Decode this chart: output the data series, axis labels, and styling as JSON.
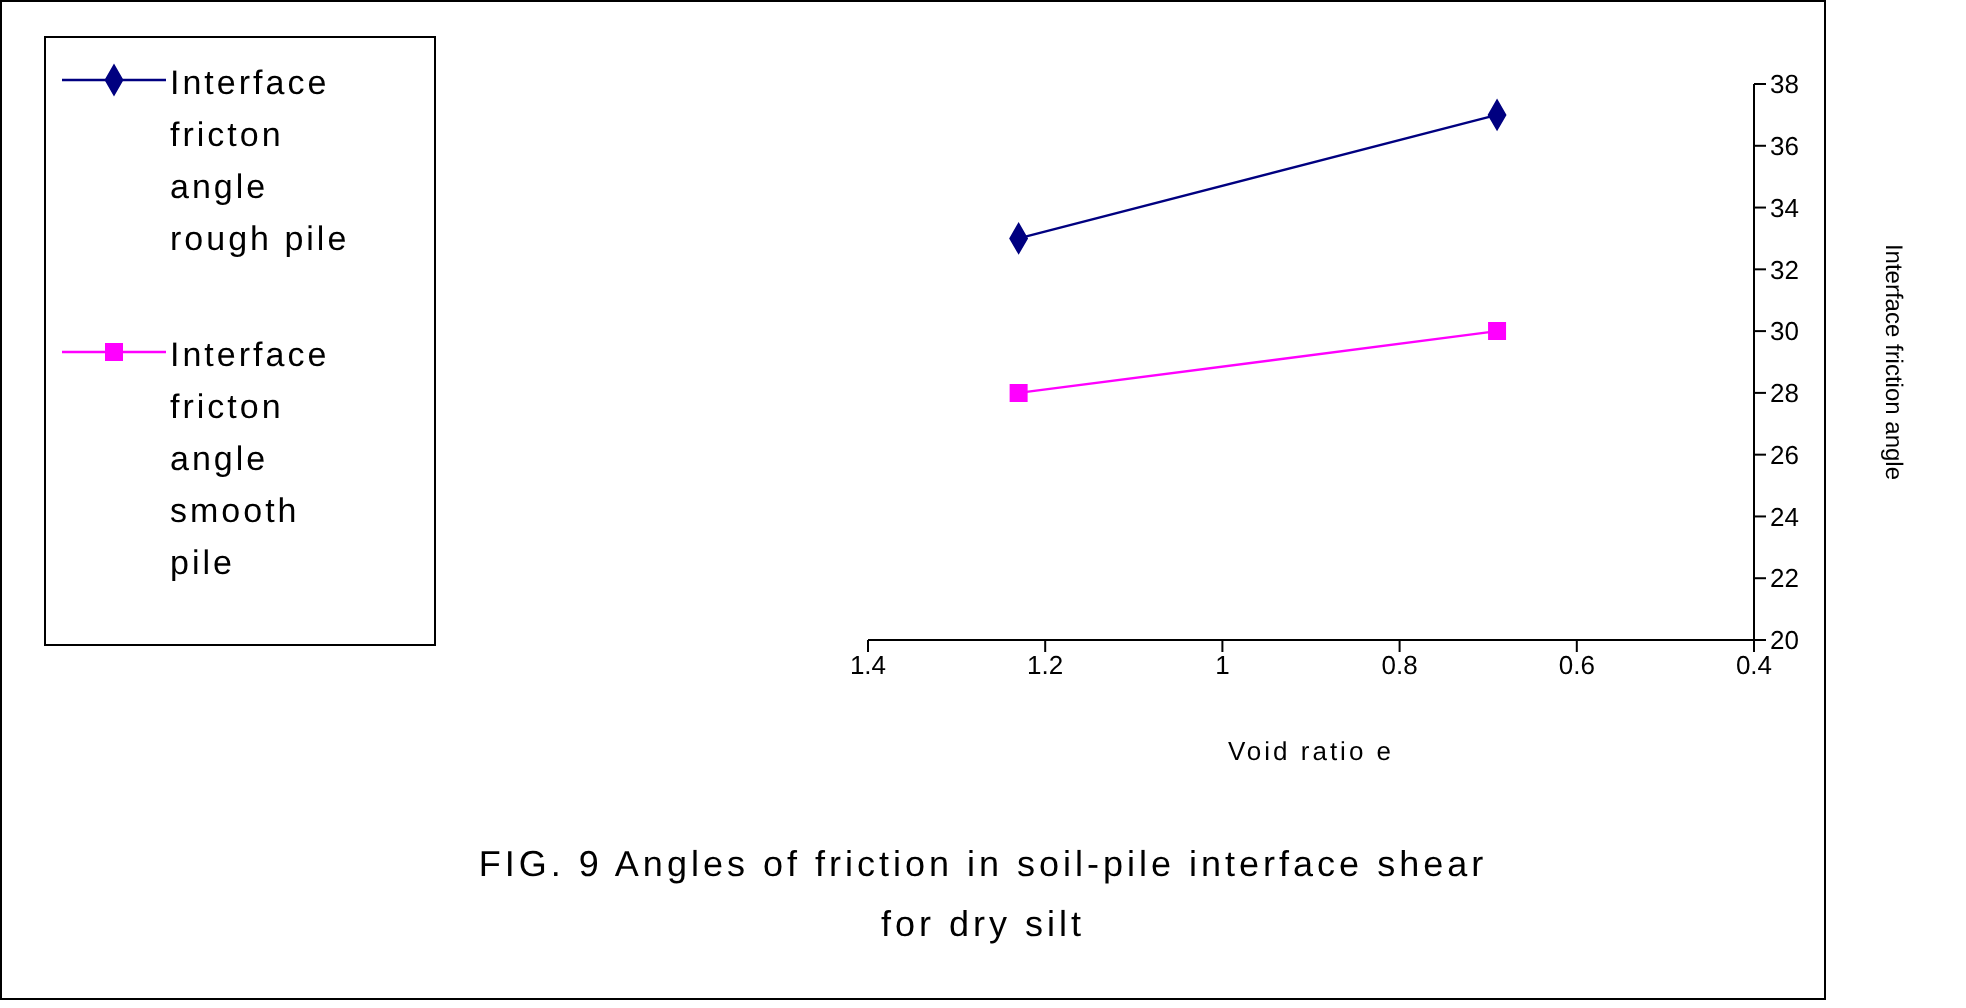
{
  "chart_data": {
    "type": "line",
    "title": "FIG. 9  Angles of friction in soil-pile interface shear\nfor dry silt",
    "xlabel": "Void ratio e",
    "ylabel": "Interface friction angle",
    "xlim": [
      1.4,
      0.4
    ],
    "xticks": [
      1.4,
      1.2,
      1,
      0.8,
      0.6,
      0.4
    ],
    "ylim": [
      20,
      38
    ],
    "yticks": [
      20,
      22,
      24,
      26,
      28,
      30,
      32,
      34,
      36,
      38
    ],
    "grid": false,
    "legend": "left",
    "line_style": "solid",
    "x": [
      1.23,
      0.69
    ],
    "series": [
      {
        "name": "Interface fricton angle rough pile",
        "color": "#000080",
        "marker": "diamond",
        "values": [
          33,
          37
        ]
      },
      {
        "name": "Interface fricton angle smooth pile",
        "color": "#ff00ff",
        "marker": "square",
        "values": [
          28,
          30
        ]
      }
    ]
  }
}
